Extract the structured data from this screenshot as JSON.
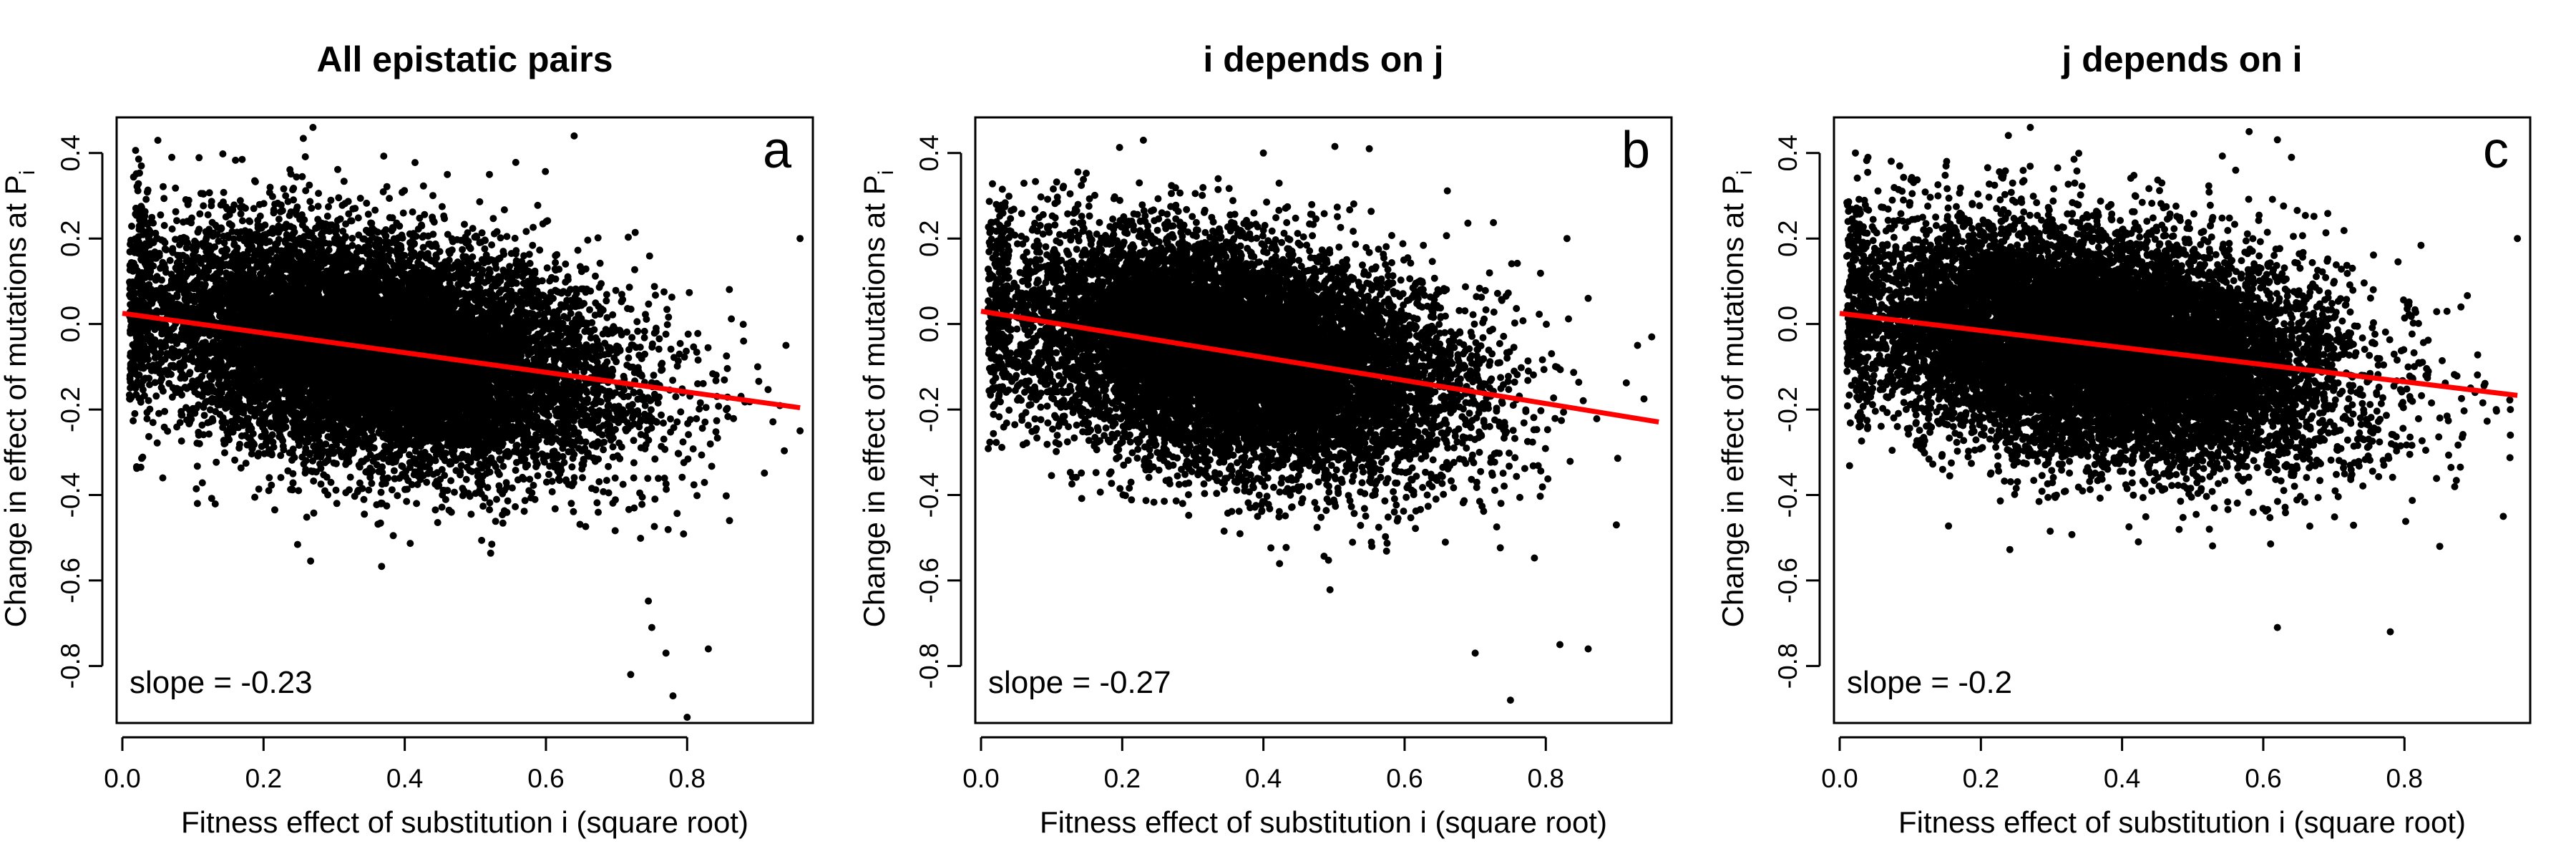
{
  "figure": {
    "background": "#ffffff",
    "point_color": "#000000",
    "regression_color": "#ff0000"
  },
  "chart_data": [
    {
      "type": "scatter",
      "panel": "a",
      "title": "All epistatic pairs",
      "xlabel": "Fitness effect of substitution i (square root)",
      "ylabel_main": "Change in effect of mutations at P",
      "ylabel_sub": "i",
      "xlim": [
        0.0,
        0.97
      ],
      "ylim": [
        -0.92,
        0.47
      ],
      "xticks": [
        "0.0",
        "0.2",
        "0.4",
        "0.6",
        "0.8"
      ],
      "yticks": [
        "-0.8",
        "-0.6",
        "-0.4",
        "-0.2",
        "0.0",
        "0.2",
        "0.4"
      ],
      "slope_label": "slope =  -0.23",
      "regression": {
        "intercept": 0.025,
        "slope": -0.23,
        "x_range": [
          0.0,
          0.96
        ]
      },
      "point_cloud": {
        "center": [
          0.36,
          -0.06
        ],
        "spread": [
          0.17,
          0.13
        ],
        "tilt": -0.25,
        "n_points": 12000
      },
      "outliers": [
        [
          0.96,
          0.2
        ],
        [
          0.94,
          -0.05
        ],
        [
          0.96,
          -0.25
        ],
        [
          0.88,
          -0.04
        ],
        [
          0.9,
          -0.1
        ],
        [
          0.86,
          -0.46
        ],
        [
          0.77,
          -0.77
        ],
        [
          0.78,
          -0.87
        ],
        [
          0.8,
          -0.92
        ],
        [
          0.83,
          -0.76
        ],
        [
          0.72,
          -0.82
        ],
        [
          0.64,
          0.44
        ],
        [
          0.27,
          0.46
        ],
        [
          0.07,
          0.39
        ],
        [
          0.75,
          -0.71
        ],
        [
          0.52,
          0.35
        ],
        [
          0.02,
          -0.1
        ]
      ]
    },
    {
      "type": "scatter",
      "panel": "b",
      "title": "i depends on j",
      "xlabel": "Fitness effect of substitution i (square root)",
      "ylabel_main": "Change in effect of mutations at P",
      "ylabel_sub": "i",
      "xlim": [
        0.0,
        0.97
      ],
      "ylim": [
        -0.92,
        0.47
      ],
      "xticks": [
        "0.0",
        "0.2",
        "0.4",
        "0.6",
        "0.8"
      ],
      "yticks": [
        "-0.8",
        "-0.6",
        "-0.4",
        "-0.2",
        "0.0",
        "0.2",
        "0.4"
      ],
      "slope_label": "slope =  -0.27",
      "regression": {
        "intercept": 0.03,
        "slope": -0.27,
        "x_range": [
          0.0,
          0.96
        ]
      },
      "point_cloud": {
        "center": [
          0.36,
          -0.07
        ],
        "spread": [
          0.16,
          0.13
        ],
        "tilt": -0.28,
        "n_points": 11000
      },
      "outliers": [
        [
          0.93,
          -0.05
        ],
        [
          0.95,
          -0.03
        ],
        [
          0.86,
          -0.76
        ],
        [
          0.82,
          -0.75
        ],
        [
          0.75,
          -0.88
        ],
        [
          0.7,
          -0.77
        ],
        [
          0.55,
          0.41
        ],
        [
          0.23,
          0.43
        ],
        [
          0.4,
          0.4
        ],
        [
          0.9,
          -0.47
        ],
        [
          0.83,
          0.2
        ],
        [
          0.02,
          -0.05
        ],
        [
          0.86,
          0.06
        ]
      ]
    },
    {
      "type": "scatter",
      "panel": "c",
      "title": "j depends on i",
      "xlabel": "Fitness effect of substitution i (square root)",
      "ylabel_main": "Change in effect of mutations at P",
      "ylabel_sub": "i",
      "xlim": [
        0.0,
        0.97
      ],
      "ylim": [
        -0.92,
        0.47
      ],
      "xticks": [
        "0.0",
        "0.2",
        "0.4",
        "0.6",
        "0.8"
      ],
      "yticks": [
        "-0.8",
        "-0.6",
        "-0.4",
        "-0.2",
        "0.0",
        "0.2",
        "0.4"
      ],
      "slope_label": "slope =  -0.2",
      "regression": {
        "intercept": 0.025,
        "slope": -0.2,
        "x_range": [
          0.0,
          0.96
        ]
      },
      "point_cloud": {
        "center": [
          0.36,
          -0.05
        ],
        "spread": [
          0.17,
          0.13
        ],
        "tilt": -0.22,
        "n_points": 12000
      },
      "outliers": [
        [
          0.96,
          0.2
        ],
        [
          0.95,
          -0.26
        ],
        [
          0.95,
          -0.2
        ],
        [
          0.94,
          -0.45
        ],
        [
          0.9,
          -0.16
        ],
        [
          0.88,
          0.04
        ],
        [
          0.85,
          -0.52
        ],
        [
          0.78,
          -0.72
        ],
        [
          0.62,
          -0.71
        ],
        [
          0.64,
          0.39
        ],
        [
          0.27,
          0.46
        ],
        [
          0.04,
          0.39
        ],
        [
          0.58,
          0.45
        ],
        [
          0.93,
          -0.2
        ]
      ]
    }
  ]
}
